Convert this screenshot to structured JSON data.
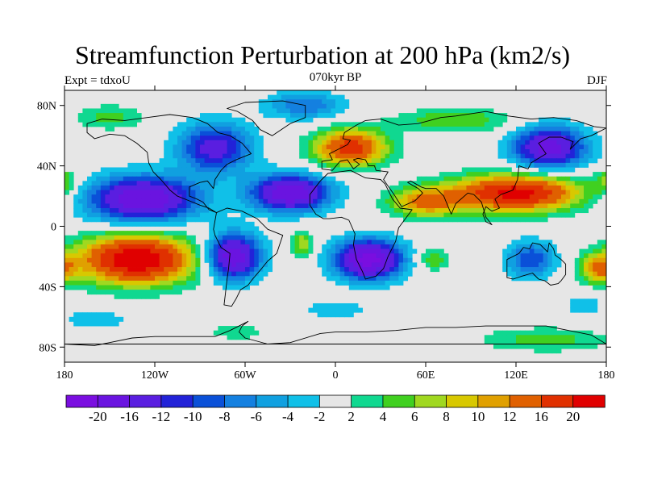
{
  "title": "Streamfunction Perturbation at 200 hPa (km2/s)",
  "left_label": "Expt = tdxoU",
  "center_label": "070kyr BP",
  "right_label": "DJF",
  "lat_ticks": [
    {
      "value": 80,
      "label": "80N"
    },
    {
      "value": 40,
      "label": "40N"
    },
    {
      "value": 0,
      "label": "0"
    },
    {
      "value": -40,
      "label": "40S"
    },
    {
      "value": -80,
      "label": "80S"
    }
  ],
  "lon_ticks": [
    {
      "value": -180,
      "label": "180"
    },
    {
      "value": -120,
      "label": "120W"
    },
    {
      "value": -60,
      "label": "60W"
    },
    {
      "value": 0,
      "label": "0"
    },
    {
      "value": 60,
      "label": "60E"
    },
    {
      "value": 120,
      "label": "120E"
    },
    {
      "value": 180,
      "label": "180"
    }
  ],
  "colorbar": {
    "colors": [
      "#7a0ee0",
      "#6a14e0",
      "#5a1ee0",
      "#2222d8",
      "#0a50d8",
      "#1480e0",
      "#10a0e0",
      "#10c0e8",
      "#e6e6e6",
      "#10d890",
      "#40d020",
      "#a0d820",
      "#d8c800",
      "#e0a000",
      "#e06000",
      "#e03000",
      "#e00000"
    ],
    "labels": [
      "-20",
      "-16",
      "-12",
      "-10",
      "-8",
      "-6",
      "-4",
      "-2",
      "2",
      "4",
      "6",
      "8",
      "10",
      "12",
      "16",
      "20"
    ]
  },
  "map": {
    "lon_range": [
      -180,
      180
    ],
    "lat_range": [
      -90,
      90
    ],
    "background_color": "#e6e6e6",
    "anomalies": [
      {
        "lon": -132,
        "lat": -22,
        "value": 24,
        "rx": 38,
        "ry": 16
      },
      {
        "lon": -128,
        "lat": 18,
        "value": -20,
        "rx": 36,
        "ry": 15
      },
      {
        "lon": -80,
        "lat": 52,
        "value": -14,
        "rx": 24,
        "ry": 16
      },
      {
        "lon": -68,
        "lat": -20,
        "value": -20,
        "rx": 18,
        "ry": 15
      },
      {
        "lon": -30,
        "lat": 22,
        "value": -20,
        "rx": 26,
        "ry": 12
      },
      {
        "lon": 22,
        "lat": -22,
        "value": -22,
        "rx": 22,
        "ry": 13
      },
      {
        "lon": 10,
        "lat": 52,
        "value": 18,
        "rx": 24,
        "ry": 12
      },
      {
        "lon": 120,
        "lat": 22,
        "value": 22,
        "rx": 42,
        "ry": 12
      },
      {
        "lon": 60,
        "lat": 16,
        "value": 12,
        "rx": 24,
        "ry": 10
      },
      {
        "lon": 142,
        "lat": 52,
        "value": -18,
        "rx": 24,
        "ry": 14
      },
      {
        "lon": 80,
        "lat": 70,
        "value": 6,
        "rx": 40,
        "ry": 8
      },
      {
        "lon": -20,
        "lat": 80,
        "value": -8,
        "rx": 26,
        "ry": 9
      },
      {
        "lon": -150,
        "lat": 72,
        "value": 5,
        "rx": 24,
        "ry": 8
      },
      {
        "lon": 130,
        "lat": -22,
        "value": -10,
        "rx": 16,
        "ry": 12
      },
      {
        "lon": 65,
        "lat": -22,
        "value": 6,
        "rx": 10,
        "ry": 7
      },
      {
        "lon": -22,
        "lat": -12,
        "value": 8,
        "rx": 7,
        "ry": 9
      },
      {
        "lon": 175,
        "lat": -28,
        "value": 12,
        "rx": 12,
        "ry": 9
      },
      {
        "lon": -180,
        "lat": 30,
        "value": 6,
        "rx": 8,
        "ry": 8
      },
      {
        "lon": 140,
        "lat": -75,
        "value": 5,
        "rx": 44,
        "ry": 8
      },
      {
        "lon": -65,
        "lat": -70,
        "value": 4,
        "rx": 18,
        "ry": 5
      },
      {
        "lon": 165,
        "lat": -52,
        "value": -4,
        "rx": 12,
        "ry": 7
      },
      {
        "lon": 0,
        "lat": -55,
        "value": -4,
        "rx": 22,
        "ry": 6
      },
      {
        "lon": -160,
        "lat": -62,
        "value": -4,
        "rx": 22,
        "ry": 6
      }
    ],
    "continents": [
      {
        "name": "north-america",
        "points": [
          [
            -165,
            68
          ],
          [
            -155,
            71
          ],
          [
            -140,
            70
          ],
          [
            -125,
            72
          ],
          [
            -110,
            74
          ],
          [
            -95,
            72
          ],
          [
            -85,
            68
          ],
          [
            -78,
            62
          ],
          [
            -70,
            60
          ],
          [
            -62,
            55
          ],
          [
            -56,
            48
          ],
          [
            -66,
            44
          ],
          [
            -72,
            41
          ],
          [
            -76,
            37
          ],
          [
            -80,
            31
          ],
          [
            -81,
            25
          ],
          [
            -85,
            30
          ],
          [
            -90,
            29
          ],
          [
            -97,
            26
          ],
          [
            -97,
            20
          ],
          [
            -92,
            18
          ],
          [
            -88,
            16
          ],
          [
            -84,
            11
          ],
          [
            -79,
            9
          ],
          [
            -84,
            12
          ],
          [
            -90,
            14
          ],
          [
            -95,
            16
          ],
          [
            -105,
            20
          ],
          [
            -110,
            24
          ],
          [
            -116,
            31
          ],
          [
            -121,
            36
          ],
          [
            -124,
            42
          ],
          [
            -125,
            49
          ],
          [
            -132,
            55
          ],
          [
            -140,
            60
          ],
          [
            -150,
            61
          ],
          [
            -160,
            58
          ],
          [
            -165,
            62
          ]
        ]
      },
      {
        "name": "greenland",
        "points": [
          [
            -72,
            78
          ],
          [
            -60,
            82
          ],
          [
            -35,
            83
          ],
          [
            -20,
            80
          ],
          [
            -20,
            72
          ],
          [
            -30,
            68
          ],
          [
            -42,
            60
          ],
          [
            -50,
            64
          ],
          [
            -55,
            70
          ],
          [
            -65,
            76
          ]
        ]
      },
      {
        "name": "south-america",
        "points": [
          [
            -79,
            9
          ],
          [
            -72,
            12
          ],
          [
            -62,
            10
          ],
          [
            -52,
            5
          ],
          [
            -45,
            -2
          ],
          [
            -35,
            -6
          ],
          [
            -37,
            -12
          ],
          [
            -39,
            -18
          ],
          [
            -45,
            -23
          ],
          [
            -49,
            -28
          ],
          [
            -55,
            -35
          ],
          [
            -58,
            -39
          ],
          [
            -63,
            -42
          ],
          [
            -66,
            -48
          ],
          [
            -69,
            -53
          ],
          [
            -74,
            -52
          ],
          [
            -73,
            -44
          ],
          [
            -72,
            -35
          ],
          [
            -71,
            -28
          ],
          [
            -70,
            -18
          ],
          [
            -76,
            -14
          ],
          [
            -80,
            -6
          ],
          [
            -81,
            -2
          ]
        ]
      },
      {
        "name": "africa",
        "points": [
          [
            -17,
            21
          ],
          [
            -10,
            30
          ],
          [
            -5,
            35
          ],
          [
            10,
            37
          ],
          [
            20,
            32
          ],
          [
            30,
            31
          ],
          [
            33,
            28
          ],
          [
            38,
            18
          ],
          [
            43,
            12
          ],
          [
            51,
            11
          ],
          [
            42,
            -1
          ],
          [
            40,
            -10
          ],
          [
            35,
            -20
          ],
          [
            32,
            -28
          ],
          [
            27,
            -33
          ],
          [
            20,
            -35
          ],
          [
            18,
            -30
          ],
          [
            14,
            -22
          ],
          [
            12,
            -12
          ],
          [
            13,
            -5
          ],
          [
            9,
            4
          ],
          [
            4,
            6
          ],
          [
            -4,
            5
          ],
          [
            -8,
            5
          ],
          [
            -13,
            8
          ],
          [
            -17,
            14
          ]
        ]
      },
      {
        "name": "eurasia",
        "points": [
          [
            -9,
            38
          ],
          [
            -9,
            43
          ],
          [
            -2,
            44
          ],
          [
            -4,
            48
          ],
          [
            2,
            51
          ],
          [
            8,
            54
          ],
          [
            10,
            57
          ],
          [
            5,
            58
          ],
          [
            6,
            62
          ],
          [
            14,
            67
          ],
          [
            20,
            70
          ],
          [
            30,
            71
          ],
          [
            42,
            67
          ],
          [
            55,
            68
          ],
          [
            70,
            72
          ],
          [
            80,
            73
          ],
          [
            100,
            76
          ],
          [
            115,
            73
          ],
          [
            130,
            71
          ],
          [
            145,
            72
          ],
          [
            160,
            70
          ],
          [
            172,
            66
          ],
          [
            180,
            65
          ],
          [
            170,
            60
          ],
          [
            163,
            58
          ],
          [
            156,
            51
          ],
          [
            158,
            56
          ],
          [
            150,
            59
          ],
          [
            142,
            59
          ],
          [
            135,
            55
          ],
          [
            140,
            48
          ],
          [
            130,
            42
          ],
          [
            128,
            38
          ],
          [
            122,
            40
          ],
          [
            121,
            31
          ],
          [
            118,
            24
          ],
          [
            110,
            21
          ],
          [
            106,
            18
          ],
          [
            109,
            12
          ],
          [
            104,
            10
          ],
          [
            100,
            13
          ],
          [
            98,
            8
          ],
          [
            100,
            3
          ],
          [
            104,
            1
          ],
          [
            100,
            6
          ],
          [
            97,
            16
          ],
          [
            92,
            21
          ],
          [
            88,
            22
          ],
          [
            80,
            15
          ],
          [
            77,
            8
          ],
          [
            72,
            20
          ],
          [
            67,
            25
          ],
          [
            60,
            25
          ],
          [
            57,
            26
          ],
          [
            50,
            30
          ],
          [
            48,
            29
          ],
          [
            55,
            25
          ],
          [
            58,
            22
          ],
          [
            53,
            17
          ],
          [
            44,
            13
          ],
          [
            39,
            21
          ],
          [
            34,
            28
          ],
          [
            32,
            31
          ],
          [
            35,
            36
          ],
          [
            27,
            37
          ],
          [
            26,
            40
          ],
          [
            22,
            40
          ],
          [
            20,
            44
          ],
          [
            15,
            45
          ],
          [
            12,
            44
          ],
          [
            16,
            41
          ],
          [
            12,
            38
          ],
          [
            8,
            44
          ],
          [
            3,
            43
          ],
          [
            -2,
            37
          ]
        ]
      },
      {
        "name": "australia",
        "points": [
          [
            114,
            -22
          ],
          [
            114,
            -34
          ],
          [
            118,
            -35
          ],
          [
            124,
            -33
          ],
          [
            131,
            -31
          ],
          [
            135,
            -35
          ],
          [
            139,
            -36
          ],
          [
            143,
            -39
          ],
          [
            148,
            -38
          ],
          [
            150,
            -36
          ],
          [
            153,
            -32
          ],
          [
            153,
            -25
          ],
          [
            150,
            -22
          ],
          [
            146,
            -19
          ],
          [
            145,
            -15
          ],
          [
            142,
            -11
          ],
          [
            141,
            -17
          ],
          [
            136,
            -12
          ],
          [
            131,
            -11
          ],
          [
            129,
            -15
          ],
          [
            125,
            -14
          ],
          [
            122,
            -18
          ]
        ]
      },
      {
        "name": "antarctica",
        "points": [
          [
            -180,
            -78
          ],
          [
            -160,
            -79
          ],
          [
            -150,
            -77
          ],
          [
            -135,
            -74
          ],
          [
            -120,
            -73
          ],
          [
            -100,
            -73
          ],
          [
            -80,
            -73
          ],
          [
            -70,
            -69
          ],
          [
            -60,
            -64
          ],
          [
            -58,
            -63
          ],
          [
            -62,
            -66
          ],
          [
            -64,
            -70
          ],
          [
            -60,
            -74
          ],
          [
            -45,
            -78
          ],
          [
            -30,
            -77
          ],
          [
            -10,
            -71
          ],
          [
            0,
            -70
          ],
          [
            20,
            -70
          ],
          [
            40,
            -69
          ],
          [
            60,
            -67
          ],
          [
            80,
            -67
          ],
          [
            100,
            -66
          ],
          [
            120,
            -66
          ],
          [
            140,
            -66
          ],
          [
            160,
            -70
          ],
          [
            170,
            -72
          ],
          [
            180,
            -78
          ]
        ]
      }
    ]
  }
}
